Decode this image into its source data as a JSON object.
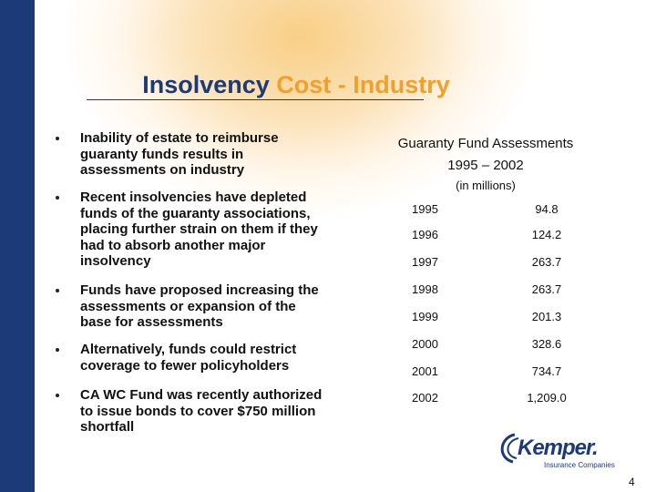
{
  "title": {
    "part1": "Insolvency",
    "part2": "Cost - Industry"
  },
  "bullets": [
    "Inability of estate to reimburse guaranty funds results in assessments on industry",
    "Recent insolvencies have depleted funds of the guaranty associations, placing further strain on them if they had to absorb another major insolvency",
    "Funds have proposed increasing the assessments or expansion of the base for assessments",
    "Alternatively, funds could restrict coverage to fewer policyholders",
    "CA WC Fund was recently authorized to issue bonds to cover $750 million shortfall"
  ],
  "table": {
    "title": "Guaranty Fund Assessments",
    "period": "1995 – 2002",
    "unit": "(in millions)",
    "rows": [
      [
        "1995",
        "94.8"
      ],
      [
        "1996",
        "124.2"
      ],
      [
        "1997",
        "263.7"
      ],
      [
        "1998",
        "263.7"
      ],
      [
        "1999",
        "201.3"
      ],
      [
        "2000",
        "328.6"
      ],
      [
        "2001",
        "734.7"
      ],
      [
        "2002",
        "1,209.0"
      ]
    ]
  },
  "logo": {
    "name": "Kemper.",
    "tagline": "Insurance Companies"
  },
  "page_number": "4"
}
